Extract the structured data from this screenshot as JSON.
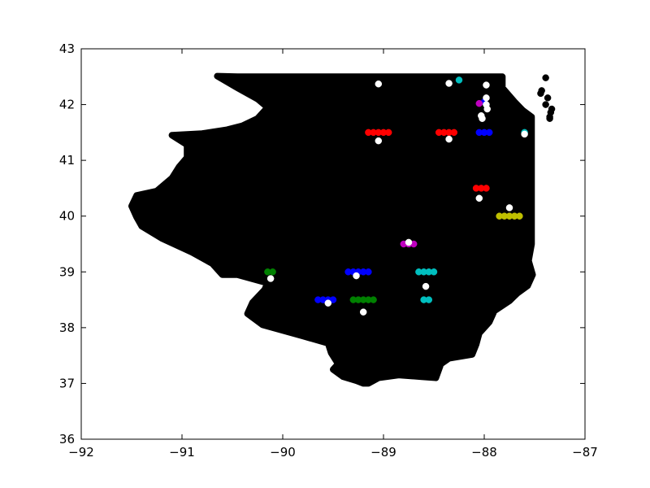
{
  "chart_data": {
    "type": "scatter",
    "title": "",
    "xlabel": "",
    "ylabel": "",
    "xlim": [
      -92,
      -87
    ],
    "ylim": [
      36,
      43
    ],
    "x_ticks": [
      -92,
      -91,
      -90,
      -89,
      -88,
      -87
    ],
    "y_ticks": [
      36,
      37,
      38,
      39,
      40,
      41,
      42,
      43
    ],
    "x_tick_labels": [
      "−92",
      "−91",
      "−90",
      "−89",
      "−88",
      "−87"
    ],
    "y_tick_labels": [
      "36",
      "37",
      "38",
      "39",
      "40",
      "41",
      "42",
      "43"
    ],
    "grid": false,
    "legend": "none",
    "region_outline": {
      "color": "#000000",
      "points": [
        [
          -90.65,
          42.51
        ],
        [
          -90.45,
          42.5
        ],
        [
          -90.0,
          42.5
        ],
        [
          -89.5,
          42.5
        ],
        [
          -89.0,
          42.5
        ],
        [
          -88.5,
          42.5
        ],
        [
          -88.2,
          42.5
        ],
        [
          -87.82,
          42.5
        ],
        [
          -87.82,
          42.3
        ],
        [
          -87.7,
          42.05
        ],
        [
          -87.62,
          41.9
        ],
        [
          -87.53,
          41.78
        ],
        [
          -87.53,
          41.5
        ],
        [
          -87.53,
          41.0
        ],
        [
          -87.53,
          40.5
        ],
        [
          -87.53,
          40.0
        ],
        [
          -87.53,
          39.5
        ],
        [
          -87.56,
          39.2
        ],
        [
          -87.52,
          38.95
        ],
        [
          -87.57,
          38.75
        ],
        [
          -87.67,
          38.62
        ],
        [
          -87.75,
          38.48
        ],
        [
          -87.9,
          38.3
        ],
        [
          -87.95,
          38.1
        ],
        [
          -88.05,
          37.9
        ],
        [
          -88.08,
          37.7
        ],
        [
          -88.12,
          37.52
        ],
        [
          -88.35,
          37.45
        ],
        [
          -88.43,
          37.35
        ],
        [
          -88.48,
          37.1
        ],
        [
          -88.62,
          37.12
        ],
        [
          -88.85,
          37.15
        ],
        [
          -89.05,
          37.1
        ],
        [
          -89.15,
          37.0
        ],
        [
          -89.2,
          37.0
        ],
        [
          -89.27,
          37.05
        ],
        [
          -89.4,
          37.12
        ],
        [
          -89.5,
          37.25
        ],
        [
          -89.45,
          37.35
        ],
        [
          -89.52,
          37.55
        ],
        [
          -89.55,
          37.72
        ],
        [
          -89.8,
          37.85
        ],
        [
          -90.0,
          37.95
        ],
        [
          -90.2,
          38.05
        ],
        [
          -90.35,
          38.25
        ],
        [
          -90.3,
          38.45
        ],
        [
          -90.18,
          38.68
        ],
        [
          -90.15,
          38.8
        ],
        [
          -90.45,
          38.95
        ],
        [
          -90.6,
          38.95
        ],
        [
          -90.7,
          39.15
        ],
        [
          -90.9,
          39.35
        ],
        [
          -91.2,
          39.6
        ],
        [
          -91.4,
          39.82
        ],
        [
          -91.45,
          39.98
        ],
        [
          -91.5,
          40.18
        ],
        [
          -91.45,
          40.37
        ],
        [
          -91.25,
          40.45
        ],
        [
          -91.1,
          40.68
        ],
        [
          -91.03,
          40.88
        ],
        [
          -90.95,
          41.05
        ],
        [
          -90.95,
          41.28
        ],
        [
          -91.1,
          41.45
        ],
        [
          -90.8,
          41.48
        ],
        [
          -90.55,
          41.55
        ],
        [
          -90.4,
          41.62
        ],
        [
          -90.25,
          41.75
        ],
        [
          -90.15,
          41.95
        ],
        [
          -90.25,
          42.1
        ],
        [
          -90.45,
          42.3
        ],
        [
          -90.65,
          42.51
        ]
      ]
    },
    "series": [
      {
        "color": "#ff0000",
        "points": [
          [
            -89.15,
            41.5
          ],
          [
            -89.1,
            41.5
          ],
          [
            -89.05,
            41.5
          ],
          [
            -89.0,
            41.5
          ],
          [
            -88.95,
            41.5
          ],
          [
            -88.45,
            41.5
          ],
          [
            -88.4,
            41.5
          ],
          [
            -88.35,
            41.5
          ],
          [
            -88.3,
            41.5
          ],
          [
            -88.08,
            40.5
          ],
          [
            -88.03,
            40.5
          ],
          [
            -87.98,
            40.5
          ]
        ]
      },
      {
        "color": "#0000ff",
        "points": [
          [
            -88.05,
            41.5
          ],
          [
            -88.0,
            41.5
          ],
          [
            -87.95,
            41.5
          ],
          [
            -89.35,
            39.0
          ],
          [
            -89.3,
            39.0
          ],
          [
            -89.25,
            39.0
          ],
          [
            -89.2,
            39.0
          ],
          [
            -89.15,
            39.0
          ],
          [
            -89.65,
            38.5
          ],
          [
            -89.6,
            38.5
          ],
          [
            -89.55,
            38.5
          ],
          [
            -89.5,
            38.5
          ],
          [
            -88.0,
            42.05
          ]
        ]
      },
      {
        "color": "#00bfbf",
        "points": [
          [
            -88.65,
            39.0
          ],
          [
            -88.6,
            39.0
          ],
          [
            -88.55,
            39.0
          ],
          [
            -88.5,
            39.0
          ],
          [
            -88.6,
            38.5
          ],
          [
            -88.55,
            38.5
          ],
          [
            -87.6,
            41.5
          ],
          [
            -88.25,
            42.44
          ]
        ]
      },
      {
        "color": "#bfbf00",
        "points": [
          [
            -87.85,
            40.0
          ],
          [
            -87.8,
            40.0
          ],
          [
            -87.75,
            40.0
          ],
          [
            -87.7,
            40.0
          ],
          [
            -87.65,
            40.0
          ]
        ]
      },
      {
        "color": "#bf00bf",
        "points": [
          [
            -88.8,
            39.5
          ],
          [
            -88.75,
            39.5
          ],
          [
            -88.7,
            39.5
          ],
          [
            -88.05,
            42.02
          ]
        ]
      },
      {
        "color": "#008000",
        "points": [
          [
            -90.15,
            39.0
          ],
          [
            -90.1,
            39.0
          ],
          [
            -89.3,
            38.5
          ],
          [
            -89.25,
            38.5
          ],
          [
            -89.2,
            38.5
          ],
          [
            -89.15,
            38.5
          ],
          [
            -89.1,
            38.5
          ]
        ]
      },
      {
        "color": "#000000",
        "points": [
          [
            -87.39,
            42.48
          ],
          [
            -87.43,
            42.25
          ],
          [
            -87.44,
            42.2
          ],
          [
            -87.37,
            42.12
          ],
          [
            -87.39,
            42.0
          ],
          [
            -87.33,
            41.92
          ],
          [
            -87.34,
            41.86
          ],
          [
            -87.35,
            41.78
          ],
          [
            -87.35,
            41.75
          ]
        ]
      },
      {
        "color": "#ffffff",
        "points": [
          [
            -89.05,
            42.37
          ],
          [
            -88.35,
            42.38
          ],
          [
            -87.98,
            42.35
          ],
          [
            -87.98,
            42.12
          ],
          [
            -87.98,
            42.0
          ],
          [
            -87.97,
            41.92
          ],
          [
            -88.03,
            41.8
          ],
          [
            -88.02,
            41.75
          ],
          [
            -89.05,
            41.35
          ],
          [
            -88.35,
            41.38
          ],
          [
            -87.6,
            41.47
          ],
          [
            -88.05,
            40.32
          ],
          [
            -87.75,
            40.15
          ],
          [
            -88.75,
            39.53
          ],
          [
            -90.12,
            38.88
          ],
          [
            -89.27,
            38.93
          ],
          [
            -88.58,
            38.74
          ],
          [
            -89.55,
            38.44
          ],
          [
            -89.2,
            38.28
          ]
        ]
      }
    ]
  }
}
